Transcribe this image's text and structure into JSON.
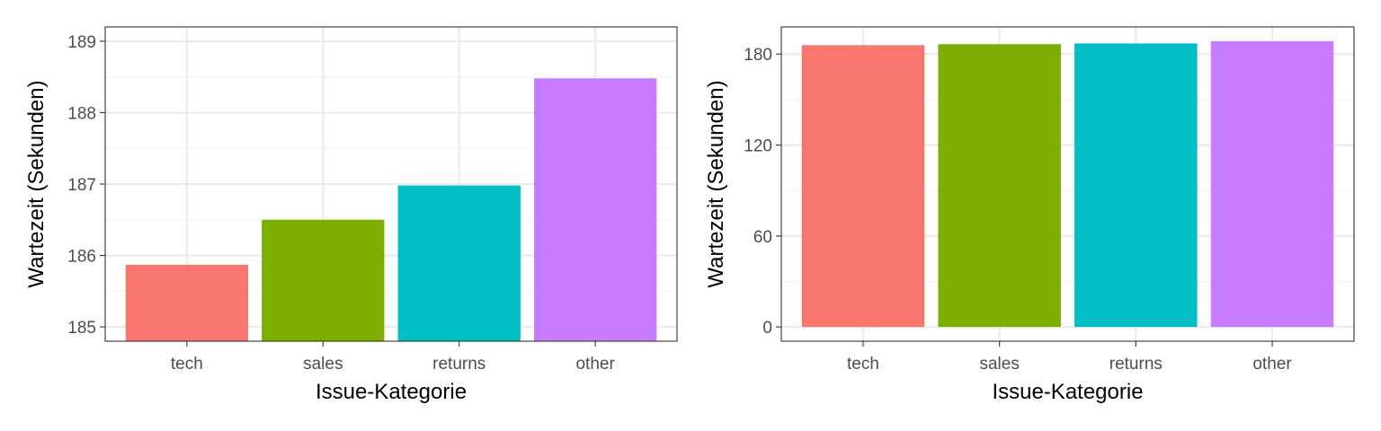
{
  "colors": {
    "tech": "#F8766D",
    "sales": "#7CAE00",
    "returns": "#00BFC4",
    "other": "#C77CFF",
    "grid_major": "#EBEBEB",
    "grid_minor": "#F2F2F2",
    "panel_border": "#333333",
    "tick_text": "#4D4D4D",
    "axis_title": "#000000"
  },
  "chart_data": [
    {
      "type": "bar",
      "categories": [
        "tech",
        "sales",
        "returns",
        "other"
      ],
      "values": [
        185.87,
        186.5,
        186.98,
        188.48
      ],
      "xlabel": "Issue-Kategorie",
      "ylabel": "Wartezeit (Sekunden)",
      "ylim": [
        184.8,
        189.2
      ],
      "yticks": [
        185,
        186,
        187,
        188,
        189
      ],
      "ytick_labels": [
        "185",
        "186",
        "187",
        "188",
        "189"
      ],
      "grid": true,
      "legend": "none"
    },
    {
      "type": "bar",
      "categories": [
        "tech",
        "sales",
        "returns",
        "other"
      ],
      "values": [
        185.87,
        186.5,
        186.98,
        188.48
      ],
      "xlabel": "Issue-Kategorie",
      "ylabel": "Wartezeit (Sekunden)",
      "ylim": [
        -9.4,
        197.9
      ],
      "yticks": [
        0,
        60,
        120,
        180
      ],
      "ytick_labels": [
        "0",
        "60",
        "120",
        "180"
      ],
      "grid": true,
      "legend": "none"
    }
  ]
}
